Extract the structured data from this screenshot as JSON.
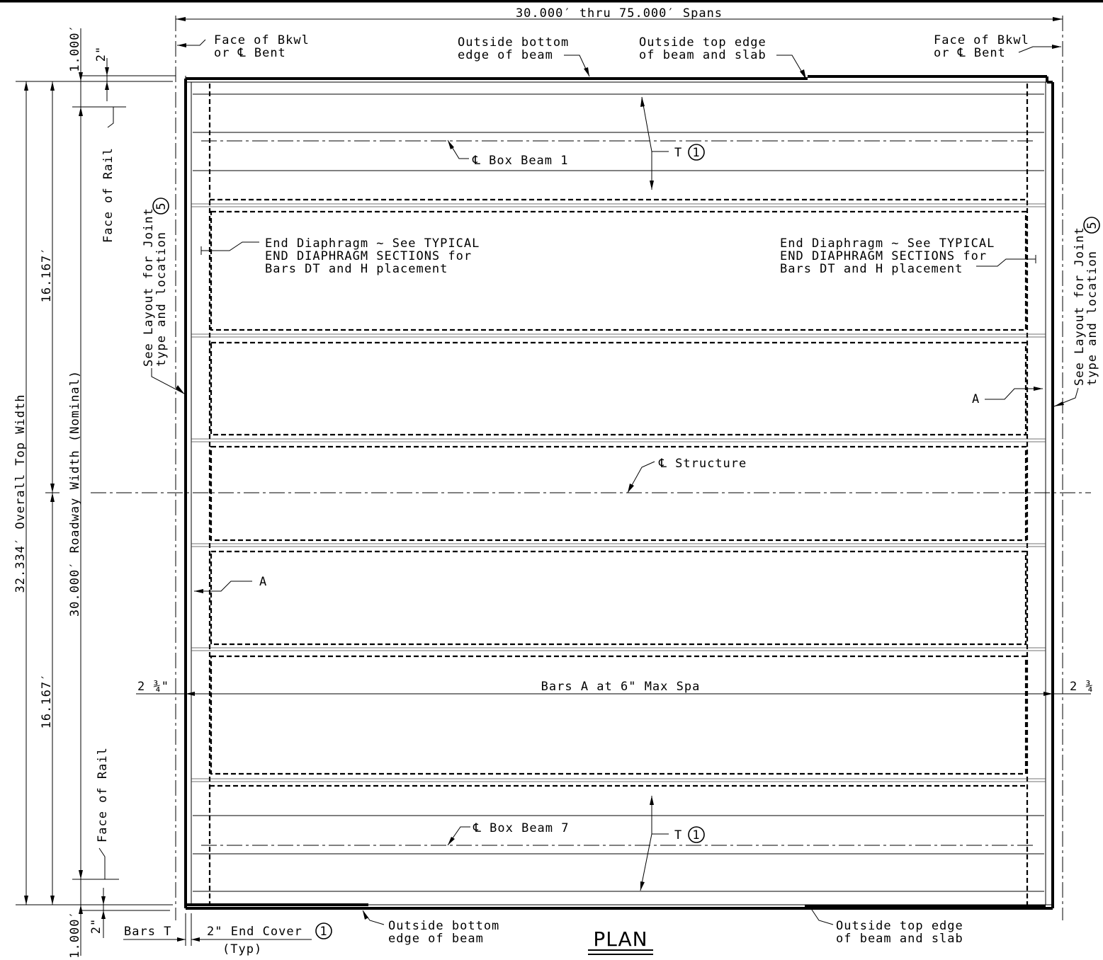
{
  "title": "PLAN",
  "labels": {
    "span_range": "30.000′ thru 75.000′ Spans",
    "face_bkwl_l1": "Face of Bkwl",
    "face_bkwl_l2": "or ℄ Bent",
    "face_bkwl_r1": "Face of Bkwl",
    "face_bkwl_r2": "or ℄ Bent",
    "obe_top_1": "Outside bottom",
    "obe_top_2": "edge of beam",
    "ote_top_1": "Outside top edge",
    "ote_top_2": "of beam and slab",
    "obe_bot_1": "Outside bottom",
    "obe_bot_2": "edge of beam",
    "ote_bot_1": "Outside top edge",
    "ote_bot_2": "of beam and slab",
    "box_beam_1": "℄ Box Beam 1",
    "box_beam_7": "℄ Box Beam 7",
    "structure_cl": "℄ Structure",
    "t_bar_top": "T",
    "t_bar_bot": "T",
    "circle_1": "1",
    "circle_5": "5",
    "end_diaph_l1": "End Diaphragm ~ See TYPICAL",
    "end_diaph_l2": "END DIAPHRAGM SECTIONS for",
    "end_diaph_l3": "Bars DT and H placement",
    "end_diaph_r1": "End Diaphragm ~ See TYPICAL",
    "end_diaph_r2": "END DIAPHRAGM SECTIONS for",
    "end_diaph_r3": "Bars DT and H placement",
    "see_layout_1": "See Layout for Joint",
    "see_layout_2": "type and location",
    "bar_a_right": "A",
    "bar_a_left": "A",
    "bars_a": "Bars A at 6\" Max Spa",
    "cover_left": "2 ¾\"",
    "cover_right": "2 ¾",
    "bars_t": "Bars T",
    "end_cover": "2\" End Cover",
    "typ": "(Typ)",
    "face_of_rail": "Face of Rail",
    "dim_overall": "32.334′ Overall Top Width",
    "dim_roadway": "30.000′ Roadway Width (Nominal)",
    "dim_half": "16.167′",
    "dim_1ft": "1.000′",
    "dim_2in": "2\""
  },
  "colors": {
    "line": "#000000",
    "background": "#ffffff"
  }
}
